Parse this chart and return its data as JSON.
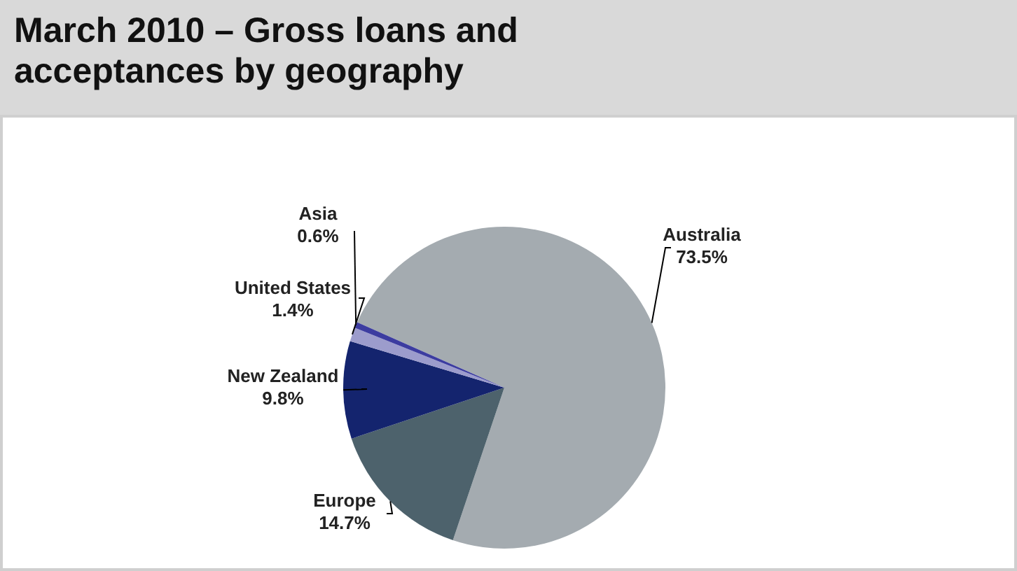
{
  "chart_data": {
    "type": "pie",
    "title": "March 2010 – Gross loans and acceptances by geography",
    "categories": [
      "Australia",
      "Europe",
      "New Zealand",
      "United States",
      "Asia"
    ],
    "values": [
      73.5,
      14.7,
      9.8,
      1.4,
      0.6
    ],
    "value_labels": [
      "73.5%",
      "14.7%",
      "9.8%",
      "1.4%",
      "0.6%"
    ],
    "colors": [
      "#a4abb0",
      "#4d626c",
      "#14246e",
      "#9c9ccc",
      "#3c3ca0"
    ],
    "legend": false
  }
}
